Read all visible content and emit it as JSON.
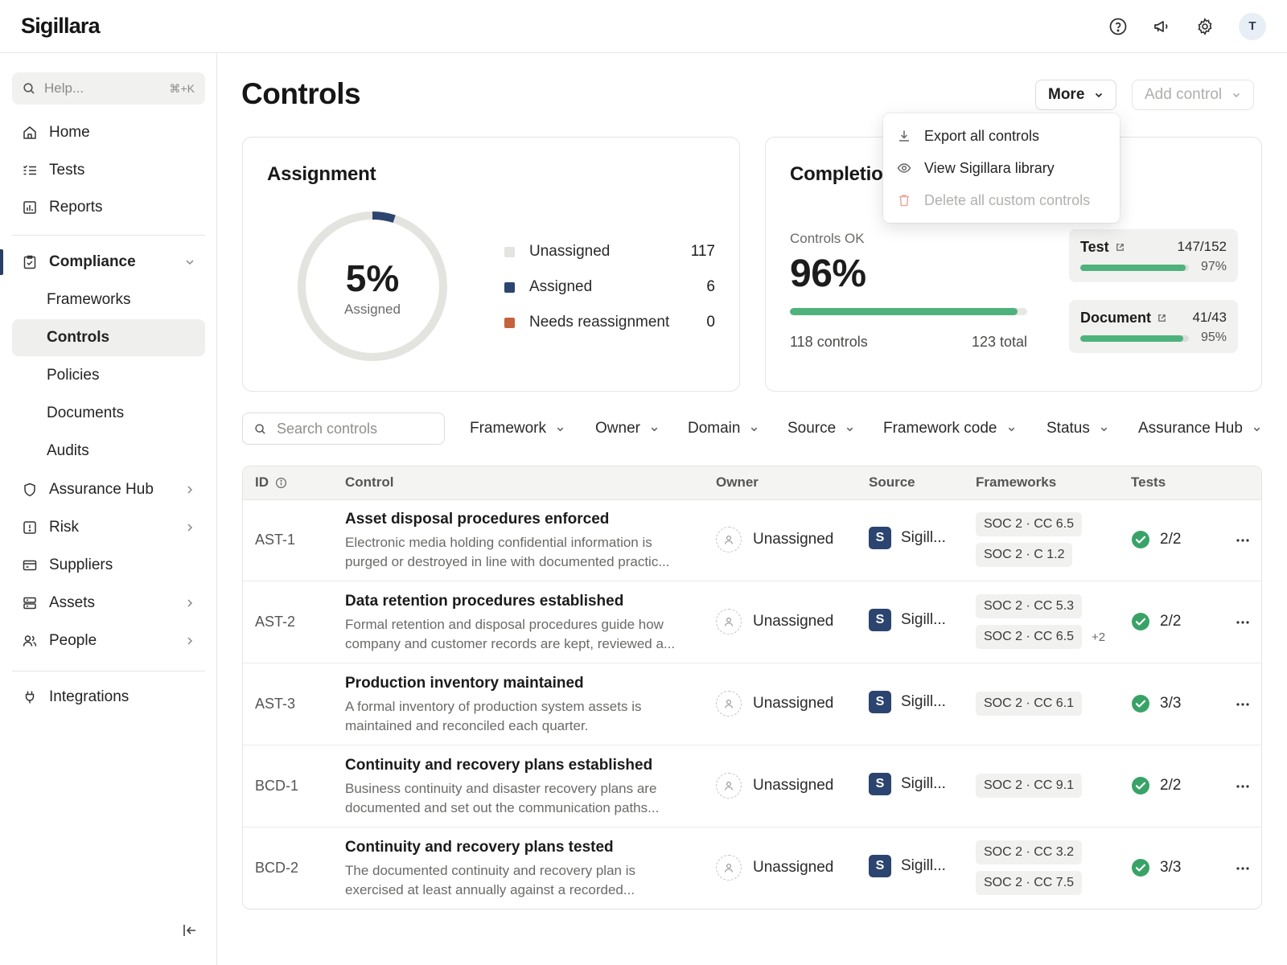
{
  "app": {
    "brand": "Sigillara",
    "avatar_initial": "T"
  },
  "topbar": {
    "icons": [
      "help-circle-icon",
      "megaphone-icon",
      "gear-icon"
    ]
  },
  "sidebar": {
    "search": {
      "placeholder": "Help...",
      "shortcut": "⌘+K"
    },
    "items": [
      {
        "label": "Home",
        "icon": "home-icon"
      },
      {
        "label": "Tests",
        "icon": "list-check-icon"
      },
      {
        "label": "Reports",
        "icon": "chart-icon"
      },
      {
        "label": "Compliance",
        "icon": "clipboard-check-icon",
        "expanded": true
      },
      {
        "label": "Assurance Hub",
        "icon": "shield-icon"
      },
      {
        "label": "Risk",
        "icon": "alert-square-icon"
      },
      {
        "label": "Suppliers",
        "icon": "card-icon"
      },
      {
        "label": "Assets",
        "icon": "server-icon"
      },
      {
        "label": "People",
        "icon": "users-icon"
      },
      {
        "label": "Integrations",
        "icon": "plug-icon"
      }
    ],
    "compliance_children": [
      "Frameworks",
      "Controls",
      "Policies",
      "Documents",
      "Audits"
    ],
    "active": "Controls"
  },
  "page": {
    "title": "Controls",
    "more_button": "More",
    "add_button": "Add control",
    "more_menu": [
      {
        "label": "Export all controls",
        "icon": "download-icon",
        "disabled": false
      },
      {
        "label": "View Sigillara library",
        "icon": "eye-icon",
        "disabled": false
      },
      {
        "label": "Delete all custom controls",
        "icon": "trash-icon",
        "disabled": true
      }
    ]
  },
  "assignment": {
    "title": "Assignment",
    "percent_label": "5%",
    "percent_value": 0.05,
    "center_caption": "Assigned",
    "legend": [
      {
        "label": "Unassigned",
        "count": "117",
        "color": "#e3e3e0"
      },
      {
        "label": "Assigned",
        "count": "6",
        "color": "#2c4470"
      },
      {
        "label": "Needs reassignment",
        "count": "0",
        "color": "#c4633d"
      }
    ]
  },
  "completion": {
    "title": "Completion",
    "ok_label": "Controls OK",
    "ok_percent": "96%",
    "ok_fraction": 0.96,
    "controls_count": "118 controls",
    "total": "123 total",
    "breakdown": [
      {
        "name": "Test",
        "value": "147/152",
        "percent": "97%",
        "fraction": 0.97
      },
      {
        "name": "Document",
        "value": "41/43",
        "percent": "95%",
        "fraction": 0.95
      }
    ]
  },
  "filters": {
    "search_placeholder": "Search controls",
    "dropdowns": [
      "Framework",
      "Owner",
      "Domain",
      "Source",
      "Framework code",
      "Status",
      "Assurance Hub"
    ]
  },
  "table": {
    "headers": {
      "id": "ID",
      "control": "Control",
      "owner": "Owner",
      "source": "Source",
      "frameworks": "Frameworks",
      "tests": "Tests"
    },
    "rows": [
      {
        "id": "AST-1",
        "title": "Asset disposal procedures enforced",
        "desc": "Electronic media holding confidential information is purged or destroyed in line with documented practic...",
        "owner": "Unassigned",
        "source": "Sigill...",
        "source_badge": "S",
        "frameworks": [
          "SOC 2 · CC 6.5",
          "SOC 2 · C 1.2"
        ],
        "extra": "",
        "tests": "2/2"
      },
      {
        "id": "AST-2",
        "title": "Data retention procedures established",
        "desc": "Formal retention and disposal procedures guide how company and customer records are kept, reviewed a...",
        "owner": "Unassigned",
        "source": "Sigill...",
        "source_badge": "S",
        "frameworks": [
          "SOC 2 · CC 5.3",
          "SOC 2 · CC 6.5"
        ],
        "extra": "+2",
        "tests": "2/2"
      },
      {
        "id": "AST-3",
        "title": "Production inventory maintained",
        "desc": "A formal inventory of production system assets is maintained and reconciled each quarter.",
        "owner": "Unassigned",
        "source": "Sigill...",
        "source_badge": "S",
        "frameworks": [
          "SOC 2 · CC 6.1"
        ],
        "extra": "",
        "tests": "3/3"
      },
      {
        "id": "BCD-1",
        "title": "Continuity and recovery plans established",
        "desc": "Business continuity and disaster recovery plans are documented and set out the communication paths...",
        "owner": "Unassigned",
        "source": "Sigill...",
        "source_badge": "S",
        "frameworks": [
          "SOC 2 · CC 9.1"
        ],
        "extra": "",
        "tests": "2/2"
      },
      {
        "id": "BCD-2",
        "title": "Continuity and recovery plans tested",
        "desc": "The documented continuity and recovery plan is exercised at least annually against a recorded...",
        "owner": "Unassigned",
        "source": "Sigill...",
        "source_badge": "S",
        "frameworks": [
          "SOC 2 · CC 3.2",
          "SOC 2 · CC 7.5"
        ],
        "extra": "",
        "tests": "3/3"
      }
    ]
  },
  "colors": {
    "accent": "#2c4470",
    "success": "#4fb27c",
    "danger": "#c4633d"
  }
}
